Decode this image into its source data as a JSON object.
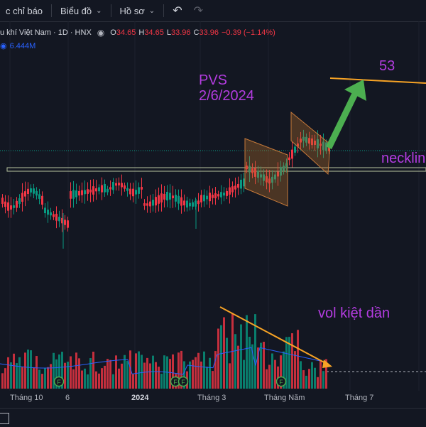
{
  "toolbar": {
    "indicators_label": "c chỉ báo",
    "chart_type_label": "Biểu đồ",
    "profile_label": "Hồ sơ",
    "undo_icon": "undo-icon",
    "redo_icon": "redo-icon"
  },
  "legend": {
    "symbol_title": "u khí Việt Nam · 1D · HNX",
    "open_label": "O",
    "open_value": "34.65",
    "high_label": "H",
    "high_value": "34.65",
    "low_label": "L",
    "low_value": "33.96",
    "close_label": "C",
    "close_value": "33.96",
    "change": "−0.39 (−1.14%)",
    "volume": "6.444M"
  },
  "x_axis": {
    "labels": [
      "Tháng 10",
      "6",
      "2024",
      "Tháng 3",
      "Tháng Năm",
      "Tháng 7"
    ]
  },
  "annotations": {
    "ticker": "PVS",
    "date": "2/6/2024",
    "target": "53",
    "neckline": "neckline",
    "volume_note": "vol kiệt dần"
  },
  "colors": {
    "up": "#089981",
    "down": "#f23645",
    "annotation_text": "#b33ce0",
    "trend_line": "#f7a325",
    "arrow": "#4caf50",
    "volume_ma": "#2962ff"
  },
  "chart_data": {
    "type": "candlestick",
    "note_marks": [
      "F",
      "F",
      "F",
      "F"
    ]
  }
}
